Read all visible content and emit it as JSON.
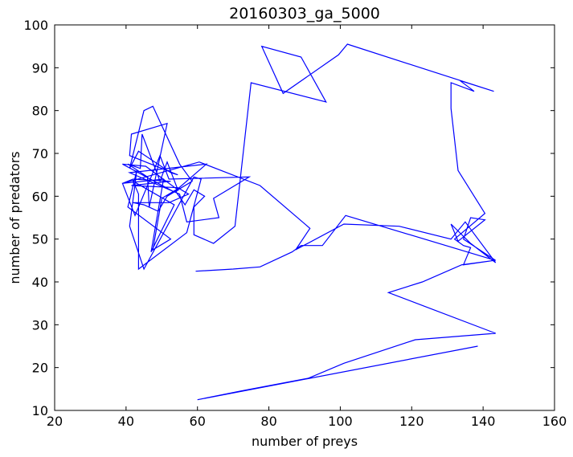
{
  "chart_data": {
    "type": "line",
    "title": "20160303_ga_5000",
    "xlabel": "number of preys",
    "ylabel": "number of predators",
    "xlim": [
      20,
      160
    ],
    "ylim": [
      10,
      100
    ],
    "xticks": [
      20,
      40,
      60,
      80,
      100,
      120,
      140,
      160
    ],
    "yticks": [
      10,
      20,
      30,
      40,
      50,
      60,
      70,
      80,
      90,
      100
    ],
    "grid": false,
    "legend": "none",
    "line_color": "#0000ff",
    "series": [
      {
        "x": [
          138.5,
          60,
          72,
          91,
          101,
          121,
          143.5,
          113.5,
          123,
          134,
          143,
          134.5,
          136.5,
          134.5,
          132,
          140.5,
          133,
          131,
          131,
          137.5,
          133.5,
          143,
          102,
          99.5,
          84,
          78,
          89,
          96,
          75,
          70.5,
          64.5,
          59,
          59,
          62,
          59,
          56.5,
          54,
          55,
          50,
          47.5,
          52.5,
          40.5,
          43,
          41,
          45,
          59,
          61,
          57,
          43.5,
          43.5,
          42,
          53.5,
          47,
          50.5,
          39,
          42.5,
          49.5,
          52,
          74.5,
          64.5,
          66,
          57,
          55,
          41,
          62.5,
          53.5,
          39,
          45.5,
          54.5,
          51.5,
          49.5,
          44.5,
          44,
          40.5,
          46,
          46.5,
          51.5,
          41.5,
          41,
          54.5,
          52.5,
          43.5,
          41,
          45,
          47.5,
          55,
          58.5,
          51.5,
          49,
          45,
          42,
          52,
          57.5,
          54.5,
          41.5,
          52.5,
          42,
          39,
          60.5,
          77.5,
          91.5,
          87.5,
          101,
          116.5,
          131,
          135,
          143.5,
          136.5,
          131,
          133,
          140.5,
          136.5,
          134.5,
          143.5,
          101.5,
          95,
          89,
          86.5,
          77.5,
          70,
          59.5
        ],
        "y": [
          25,
          12.5,
          14.5,
          17.5,
          21,
          26.5,
          28,
          37.5,
          40,
          44,
          45,
          44,
          48,
          48.5,
          50,
          56,
          66,
          80.5,
          86.5,
          84.5,
          87,
          84.5,
          95.5,
          93,
          84,
          95,
          92.5,
          82,
          86.5,
          53,
          49,
          51,
          57.5,
          60,
          61.5,
          58,
          61,
          62,
          59.5,
          47.5,
          50,
          57.5,
          66,
          53,
          43,
          64.5,
          64,
          51.5,
          43,
          60.5,
          63.5,
          58,
          47,
          64,
          63,
          55.5,
          69.5,
          64,
          64.5,
          59.5,
          55,
          54,
          60.5,
          65.5,
          67.5,
          61,
          67.5,
          67,
          61.5,
          68,
          63.5,
          74.5,
          66.5,
          67.5,
          64.5,
          57.5,
          77,
          74.5,
          69.5,
          65,
          65.5,
          70.5,
          66.5,
          80,
          81,
          67.5,
          63.5,
          60,
          56.5,
          58,
          58.5,
          58.5,
          60.5,
          62,
          62.5,
          63.5,
          64,
          63,
          68,
          62.5,
          52.5,
          47.5,
          53.5,
          53,
          50,
          54,
          44.5,
          49,
          53.5,
          49.5,
          54.5,
          55,
          50,
          45,
          55.5,
          48.5,
          48.5,
          47,
          43.5,
          43,
          42.5
        ]
      }
    ]
  }
}
